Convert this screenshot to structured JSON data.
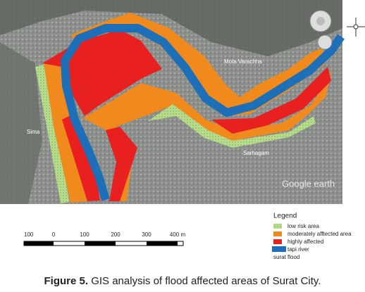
{
  "map": {
    "places": [
      "Mota Varachha",
      "Sima",
      "Sarhagam"
    ],
    "watermark": "Google earth"
  },
  "scale": {
    "labels": [
      "100",
      "0",
      "100",
      "200",
      "300",
      "400 m"
    ]
  },
  "legend": {
    "title": "Legend",
    "items": [
      "low risk area",
      "moderately afftected area",
      "highly affected",
      "tapi river",
      "surat flood"
    ]
  },
  "caption": {
    "label": "Figure 5.",
    "text": "GIS analysis of flood affected areas of Surat City."
  }
}
